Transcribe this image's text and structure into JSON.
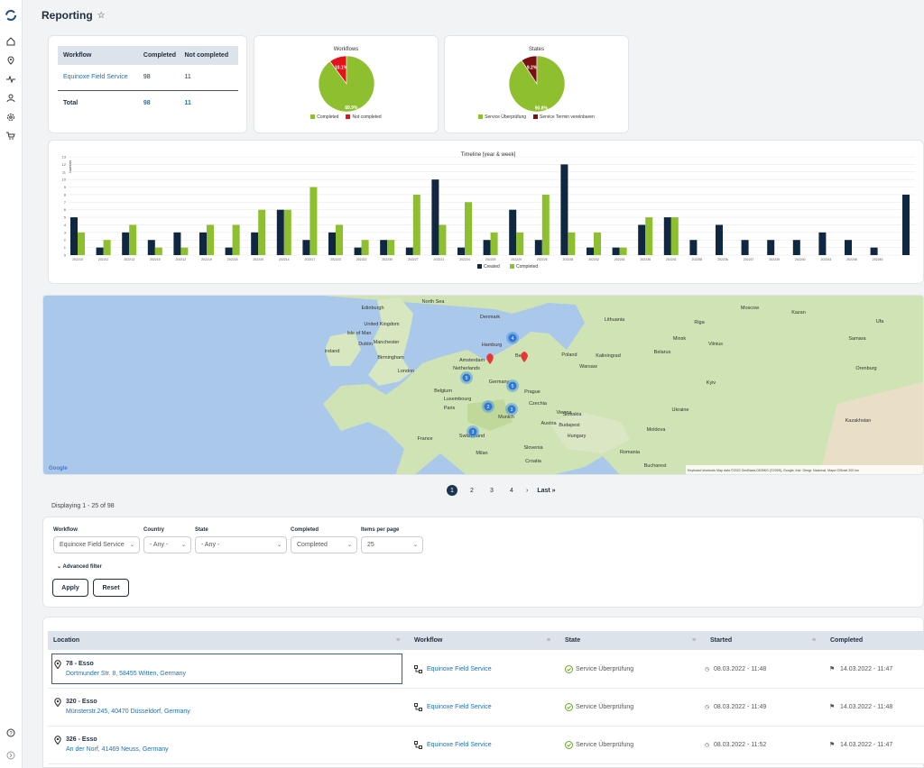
{
  "page": {
    "title": "Reporting"
  },
  "summary_table": {
    "headers": [
      "Workflow",
      "Completed",
      "Not completed"
    ],
    "rows": [
      {
        "workflow": "Equinoxe Field Service",
        "completed": "98",
        "not_completed": "11"
      }
    ],
    "total": {
      "label": "Total",
      "completed": "98",
      "not_completed": "11"
    }
  },
  "pie_workflows": {
    "title": "Workflows",
    "slices": [
      {
        "label": "Completed",
        "value": 89.9,
        "pct_label": "89.9%",
        "color": "#8dbf2f"
      },
      {
        "label": "Not completed",
        "value": 10.1,
        "pct_label": "10.1%",
        "color": "#e0141a"
      }
    ]
  },
  "pie_states": {
    "title": "States",
    "slices": [
      {
        "label": "Service Überprüfung",
        "value": 90.8,
        "pct_label": "90.8%",
        "color": "#8dbf2f"
      },
      {
        "label": "Service Termin vereinbaren",
        "value": 9.2,
        "pct_label": "9.2%",
        "color": "#7a1010"
      }
    ]
  },
  "chart_data": {
    "type": "bar",
    "title": "Timeline [year & week]",
    "ylabel": "Number",
    "ylim": [
      0,
      13
    ],
    "yticks": [
      0,
      1,
      2,
      3,
      4,
      5,
      6,
      7,
      8,
      9,
      10,
      11,
      12,
      13
    ],
    "categories": [
      "202210",
      "202211",
      "202213",
      "202215",
      "202212",
      "202219",
      "202218",
      "202220",
      "202214",
      "202217",
      "202223",
      "202222",
      "202230",
      "202227",
      "202221",
      "202224",
      "202225",
      "202229",
      "202226",
      "202228",
      "202232",
      "202234",
      "202236",
      "202241",
      "202258",
      "202236",
      "202237",
      "202239",
      "202240",
      "202243",
      "202245",
      "202246"
    ],
    "series": [
      {
        "name": "Created",
        "color": "#0f2741",
        "values": [
          5,
          1,
          3,
          2,
          3,
          3,
          1,
          3,
          6,
          2,
          3,
          1,
          2,
          1,
          10,
          1,
          2,
          6,
          2,
          12,
          1,
          1,
          4,
          5,
          2,
          4,
          2,
          2,
          2,
          3,
          2,
          1
        ]
      },
      {
        "name": "Completed",
        "color": "#8dbf2f",
        "values": [
          3,
          2,
          4,
          1,
          1,
          4,
          4,
          6,
          6,
          9,
          4,
          2,
          2,
          8,
          4,
          7,
          3,
          3,
          8,
          3,
          3,
          1,
          5,
          5,
          0,
          0,
          0,
          0,
          0,
          0,
          0,
          0
        ]
      }
    ],
    "extra_last": {
      "created": 8
    },
    "legend": "bottom-center"
  },
  "map": {
    "labels": [
      {
        "text": "Denmark"
      },
      {
        "text": "Lithuania"
      },
      {
        "text": "United Kingdom"
      },
      {
        "text": "Isle of Man"
      },
      {
        "text": "Ireland"
      },
      {
        "text": "Manchester"
      },
      {
        "text": "Birmingham"
      },
      {
        "text": "London"
      },
      {
        "text": "Dublin"
      },
      {
        "text": "Edinburgh"
      },
      {
        "text": "Netherlands"
      },
      {
        "text": "Amsterdam"
      },
      {
        "text": "Hamburg"
      },
      {
        "text": "Berlin"
      },
      {
        "text": "Poland"
      },
      {
        "text": "Warsaw"
      },
      {
        "text": "Belarus"
      },
      {
        "text": "Minsk"
      },
      {
        "text": "Belgium"
      },
      {
        "text": "Germany"
      },
      {
        "text": "Luxembourg"
      },
      {
        "text": "Prague"
      },
      {
        "text": "Czechia"
      },
      {
        "text": "Paris"
      },
      {
        "text": "France"
      },
      {
        "text": "Munich"
      },
      {
        "text": "Vienna"
      },
      {
        "text": "Slovakia"
      },
      {
        "text": "Austria"
      },
      {
        "text": "Hungary"
      },
      {
        "text": "Budapest"
      },
      {
        "text": "Ukraine"
      },
      {
        "text": "Kyiv"
      },
      {
        "text": "Switzerland"
      },
      {
        "text": "Milan"
      },
      {
        "text": "Slovenia"
      },
      {
        "text": "Croatia"
      },
      {
        "text": "Romania"
      },
      {
        "text": "Moldova"
      },
      {
        "text": "Bucharest"
      },
      {
        "text": "Kazan"
      },
      {
        "text": "Samara"
      },
      {
        "text": "Orenburg"
      },
      {
        "text": "Kazakhstan"
      },
      {
        "text": "Ufa"
      },
      {
        "text": "North Sea"
      },
      {
        "text": "Riga"
      },
      {
        "text": "Vilnius"
      },
      {
        "text": "Kaliningrad"
      },
      {
        "text": "Moscow"
      }
    ],
    "clusters": [
      {
        "text": "4"
      },
      {
        "text": "5"
      },
      {
        "text": "5"
      },
      {
        "text": "2"
      },
      {
        "text": "3"
      },
      {
        "text": "3"
      }
    ],
    "attribution": "Keyboard shortcuts   Map data ©2022 GeoBasis-DE/BKG (©2009), Google, Inst. Geogr. Nacional, Mapa GISrael   200 km",
    "google_logo": "Google"
  },
  "pager": {
    "pages": [
      "1",
      "2",
      "3",
      "4"
    ],
    "next": "›",
    "last": "Last »"
  },
  "display_info": "Displaying 1 - 25 of 98",
  "filters": {
    "workflow": {
      "label": "Workflow",
      "value": "Equinoxe Field Service"
    },
    "country": {
      "label": "Country",
      "value": "- Any -"
    },
    "state": {
      "label": "State",
      "value": "- Any -"
    },
    "completed": {
      "label": "Completed",
      "value": "Completed"
    },
    "items_per_page": {
      "label": "Items per page",
      "value": "25"
    },
    "advanced": "Advanced filter",
    "apply": "Apply",
    "reset": "Reset"
  },
  "table": {
    "headers": [
      "Location",
      "Workflow",
      "State",
      "Started",
      "Completed"
    ],
    "rows": [
      {
        "name": "78 - Esso",
        "address": "Dortmunder Str. 8, 58455 Witten, Germany",
        "workflow": "Equinoxe Field Service",
        "state": "Service Überprüfung",
        "started": "08.03.2022 - 11:48",
        "completed": "14.03.2022 - 11:47"
      },
      {
        "name": "320 - Esso",
        "address": "Münsterstr.245, 40470 Düsseldorf, Germany",
        "workflow": "Equinoxe Field Service",
        "state": "Service Überprüfung",
        "started": "08.03.2022 - 11:49",
        "completed": "14.03.2022 - 11:48"
      },
      {
        "name": "326 - Esso",
        "address": "An der Norf, 41469 Neuss, Germany",
        "workflow": "Equinoxe Field Service",
        "state": "Service Überprüfung",
        "started": "08.03.2022 - 11:52",
        "completed": "14.03.2022 - 11:47"
      }
    ]
  }
}
